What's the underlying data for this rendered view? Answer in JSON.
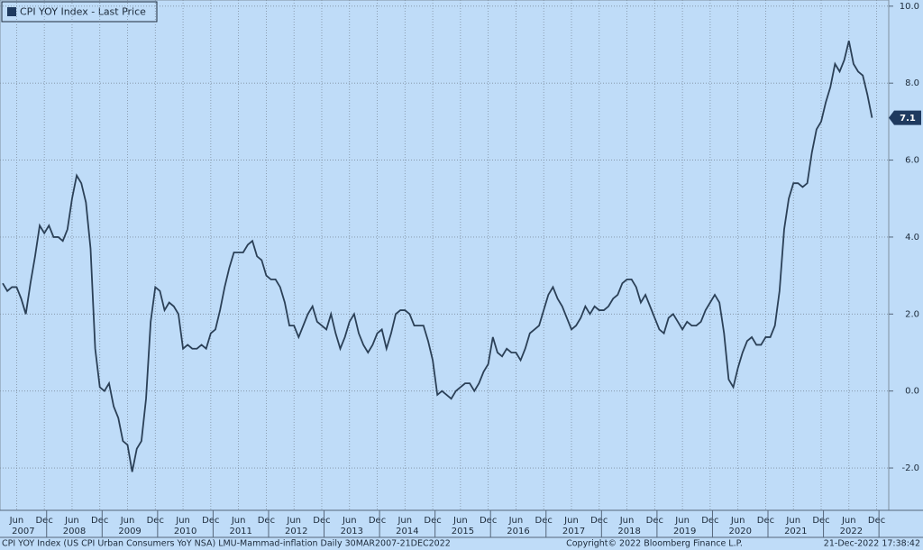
{
  "chart_data": {
    "type": "line",
    "legend_label": "CPI YOY Index - Last Price",
    "footer_left": "CPI YOY Index (US CPI Urban Consumers YoY NSA) LMU-Mammad-inflation  Daily 30MAR2007-21DEC2022",
    "footer_center": "Copyright© 2022 Bloomberg Finance L.P.",
    "footer_right": "21-Dec-2022 17:38:42",
    "x": [
      "2007-03",
      "2007-04",
      "2007-05",
      "2007-06",
      "2007-07",
      "2007-08",
      "2007-09",
      "2007-10",
      "2007-11",
      "2007-12",
      "2008-01",
      "2008-02",
      "2008-03",
      "2008-04",
      "2008-05",
      "2008-06",
      "2008-07",
      "2008-08",
      "2008-09",
      "2008-10",
      "2008-11",
      "2008-12",
      "2009-01",
      "2009-02",
      "2009-03",
      "2009-04",
      "2009-05",
      "2009-06",
      "2009-07",
      "2009-08",
      "2009-09",
      "2009-10",
      "2009-11",
      "2009-12",
      "2010-01",
      "2010-02",
      "2010-03",
      "2010-04",
      "2010-05",
      "2010-06",
      "2010-07",
      "2010-08",
      "2010-09",
      "2010-10",
      "2010-11",
      "2010-12",
      "2011-01",
      "2011-02",
      "2011-03",
      "2011-04",
      "2011-05",
      "2011-06",
      "2011-07",
      "2011-08",
      "2011-09",
      "2011-10",
      "2011-11",
      "2011-12",
      "2012-01",
      "2012-02",
      "2012-03",
      "2012-04",
      "2012-05",
      "2012-06",
      "2012-07",
      "2012-08",
      "2012-09",
      "2012-10",
      "2012-11",
      "2012-12",
      "2013-01",
      "2013-02",
      "2013-03",
      "2013-04",
      "2013-05",
      "2013-06",
      "2013-07",
      "2013-08",
      "2013-09",
      "2013-10",
      "2013-11",
      "2013-12",
      "2014-01",
      "2014-02",
      "2014-03",
      "2014-04",
      "2014-05",
      "2014-06",
      "2014-07",
      "2014-08",
      "2014-09",
      "2014-10",
      "2014-11",
      "2014-12",
      "2015-01",
      "2015-02",
      "2015-03",
      "2015-04",
      "2015-05",
      "2015-06",
      "2015-07",
      "2015-08",
      "2015-09",
      "2015-10",
      "2015-11",
      "2015-12",
      "2016-01",
      "2016-02",
      "2016-03",
      "2016-04",
      "2016-05",
      "2016-06",
      "2016-07",
      "2016-08",
      "2016-09",
      "2016-10",
      "2016-11",
      "2016-12",
      "2017-01",
      "2017-02",
      "2017-03",
      "2017-04",
      "2017-05",
      "2017-06",
      "2017-07",
      "2017-08",
      "2017-09",
      "2017-10",
      "2017-11",
      "2017-12",
      "2018-01",
      "2018-02",
      "2018-03",
      "2018-04",
      "2018-05",
      "2018-06",
      "2018-07",
      "2018-08",
      "2018-09",
      "2018-10",
      "2018-11",
      "2018-12",
      "2019-01",
      "2019-02",
      "2019-03",
      "2019-04",
      "2019-05",
      "2019-06",
      "2019-07",
      "2019-08",
      "2019-09",
      "2019-10",
      "2019-11",
      "2019-12",
      "2020-01",
      "2020-02",
      "2020-03",
      "2020-04",
      "2020-05",
      "2020-06",
      "2020-07",
      "2020-08",
      "2020-09",
      "2020-10",
      "2020-11",
      "2020-12",
      "2021-01",
      "2021-02",
      "2021-03",
      "2021-04",
      "2021-05",
      "2021-06",
      "2021-07",
      "2021-08",
      "2021-09",
      "2021-10",
      "2021-11",
      "2021-12",
      "2022-01",
      "2022-02",
      "2022-03",
      "2022-04",
      "2022-05",
      "2022-06",
      "2022-07",
      "2022-08",
      "2022-09",
      "2022-10",
      "2022-11"
    ],
    "series": [
      {
        "name": "CPI YOY Index",
        "color": "#2b4057",
        "values": [
          2.8,
          2.6,
          2.7,
          2.7,
          2.4,
          2.0,
          2.8,
          3.5,
          4.3,
          4.1,
          4.3,
          4.0,
          4.0,
          3.9,
          4.2,
          5.0,
          5.6,
          5.4,
          4.9,
          3.7,
          1.1,
          0.1,
          0.0,
          0.2,
          -0.4,
          -0.7,
          -1.3,
          -1.4,
          -2.1,
          -1.5,
          -1.3,
          -0.2,
          1.8,
          2.7,
          2.6,
          2.1,
          2.3,
          2.2,
          2.0,
          1.1,
          1.2,
          1.1,
          1.1,
          1.2,
          1.1,
          1.5,
          1.6,
          2.1,
          2.7,
          3.2,
          3.6,
          3.6,
          3.6,
          3.8,
          3.9,
          3.5,
          3.4,
          3.0,
          2.9,
          2.9,
          2.7,
          2.3,
          1.7,
          1.7,
          1.4,
          1.7,
          2.0,
          2.2,
          1.8,
          1.7,
          1.6,
          2.0,
          1.5,
          1.1,
          1.4,
          1.8,
          2.0,
          1.5,
          1.2,
          1.0,
          1.2,
          1.5,
          1.6,
          1.1,
          1.5,
          2.0,
          2.1,
          2.1,
          2.0,
          1.7,
          1.7,
          1.7,
          1.3,
          0.8,
          -0.1,
          0.0,
          -0.1,
          -0.2,
          0.0,
          0.1,
          0.2,
          0.2,
          0.0,
          0.2,
          0.5,
          0.7,
          1.4,
          1.0,
          0.9,
          1.1,
          1.0,
          1.0,
          0.8,
          1.1,
          1.5,
          1.6,
          1.7,
          2.1,
          2.5,
          2.7,
          2.4,
          2.2,
          1.9,
          1.6,
          1.7,
          1.9,
          2.2,
          2.0,
          2.2,
          2.1,
          2.1,
          2.2,
          2.4,
          2.5,
          2.8,
          2.9,
          2.9,
          2.7,
          2.3,
          2.5,
          2.2,
          1.9,
          1.6,
          1.5,
          1.9,
          2.0,
          1.8,
          1.6,
          1.8,
          1.7,
          1.7,
          1.8,
          2.1,
          2.3,
          2.5,
          2.3,
          1.5,
          0.3,
          0.1,
          0.6,
          1.0,
          1.3,
          1.4,
          1.2,
          1.2,
          1.4,
          1.4,
          1.7,
          2.6,
          4.2,
          5.0,
          5.4,
          5.4,
          5.3,
          5.4,
          6.2,
          6.8,
          7.0,
          7.5,
          7.9,
          8.5,
          8.3,
          8.6,
          9.1,
          8.5,
          8.3,
          8.2,
          7.7,
          7.1
        ]
      }
    ],
    "ylim": [
      -3.1,
      10.16
    ],
    "yticks": [
      {
        "value": -2,
        "label": "-2.0"
      },
      {
        "value": 0,
        "label": "0.0"
      },
      {
        "value": 2,
        "label": "2.0"
      },
      {
        "value": 4,
        "label": "4.0"
      },
      {
        "value": 6,
        "label": "6.0"
      },
      {
        "value": 8,
        "label": "8.0"
      },
      {
        "value": 10,
        "label": "10.0"
      }
    ],
    "xticks": [
      {
        "value": "2007-06",
        "label": "Jun"
      },
      {
        "value": "2007-12",
        "label": "Dec"
      },
      {
        "value": "2008-06",
        "label": "Jun"
      },
      {
        "value": "2008-12",
        "label": "Dec"
      },
      {
        "value": "2009-06",
        "label": "Jun"
      },
      {
        "value": "2009-12",
        "label": "Dec"
      },
      {
        "value": "2010-06",
        "label": "Jun"
      },
      {
        "value": "2010-12",
        "label": "Dec"
      },
      {
        "value": "2011-06",
        "label": "Jun"
      },
      {
        "value": "2011-12",
        "label": "Dec"
      },
      {
        "value": "2012-06",
        "label": "Jun"
      },
      {
        "value": "2012-12",
        "label": "Dec"
      },
      {
        "value": "2013-06",
        "label": "Jun"
      },
      {
        "value": "2013-12",
        "label": "Dec"
      },
      {
        "value": "2014-06",
        "label": "Jun"
      },
      {
        "value": "2014-12",
        "label": "Dec"
      },
      {
        "value": "2015-06",
        "label": "Jun"
      },
      {
        "value": "2015-12",
        "label": "Dec"
      },
      {
        "value": "2016-06",
        "label": "Jun"
      },
      {
        "value": "2016-12",
        "label": "Dec"
      },
      {
        "value": "2017-06",
        "label": "Jun"
      },
      {
        "value": "2017-12",
        "label": "Dec"
      },
      {
        "value": "2018-06",
        "label": "Jun"
      },
      {
        "value": "2018-12",
        "label": "Dec"
      },
      {
        "value": "2019-06",
        "label": "Jun"
      },
      {
        "value": "2019-12",
        "label": "Dec"
      },
      {
        "value": "2020-06",
        "label": "Jun"
      },
      {
        "value": "2020-12",
        "label": "Dec"
      },
      {
        "value": "2021-06",
        "label": "Jun"
      },
      {
        "value": "2021-12",
        "label": "Dec"
      },
      {
        "value": "2022-06",
        "label": "Jun"
      },
      {
        "value": "2022-12",
        "label": "Dec"
      }
    ],
    "years": [
      "2007",
      "2008",
      "2009",
      "2010",
      "2011",
      "2012",
      "2013",
      "2014",
      "2015",
      "2016",
      "2017",
      "2018",
      "2019",
      "2020",
      "2021",
      "2022"
    ],
    "grid": true,
    "background": "#bfdcf8"
  }
}
